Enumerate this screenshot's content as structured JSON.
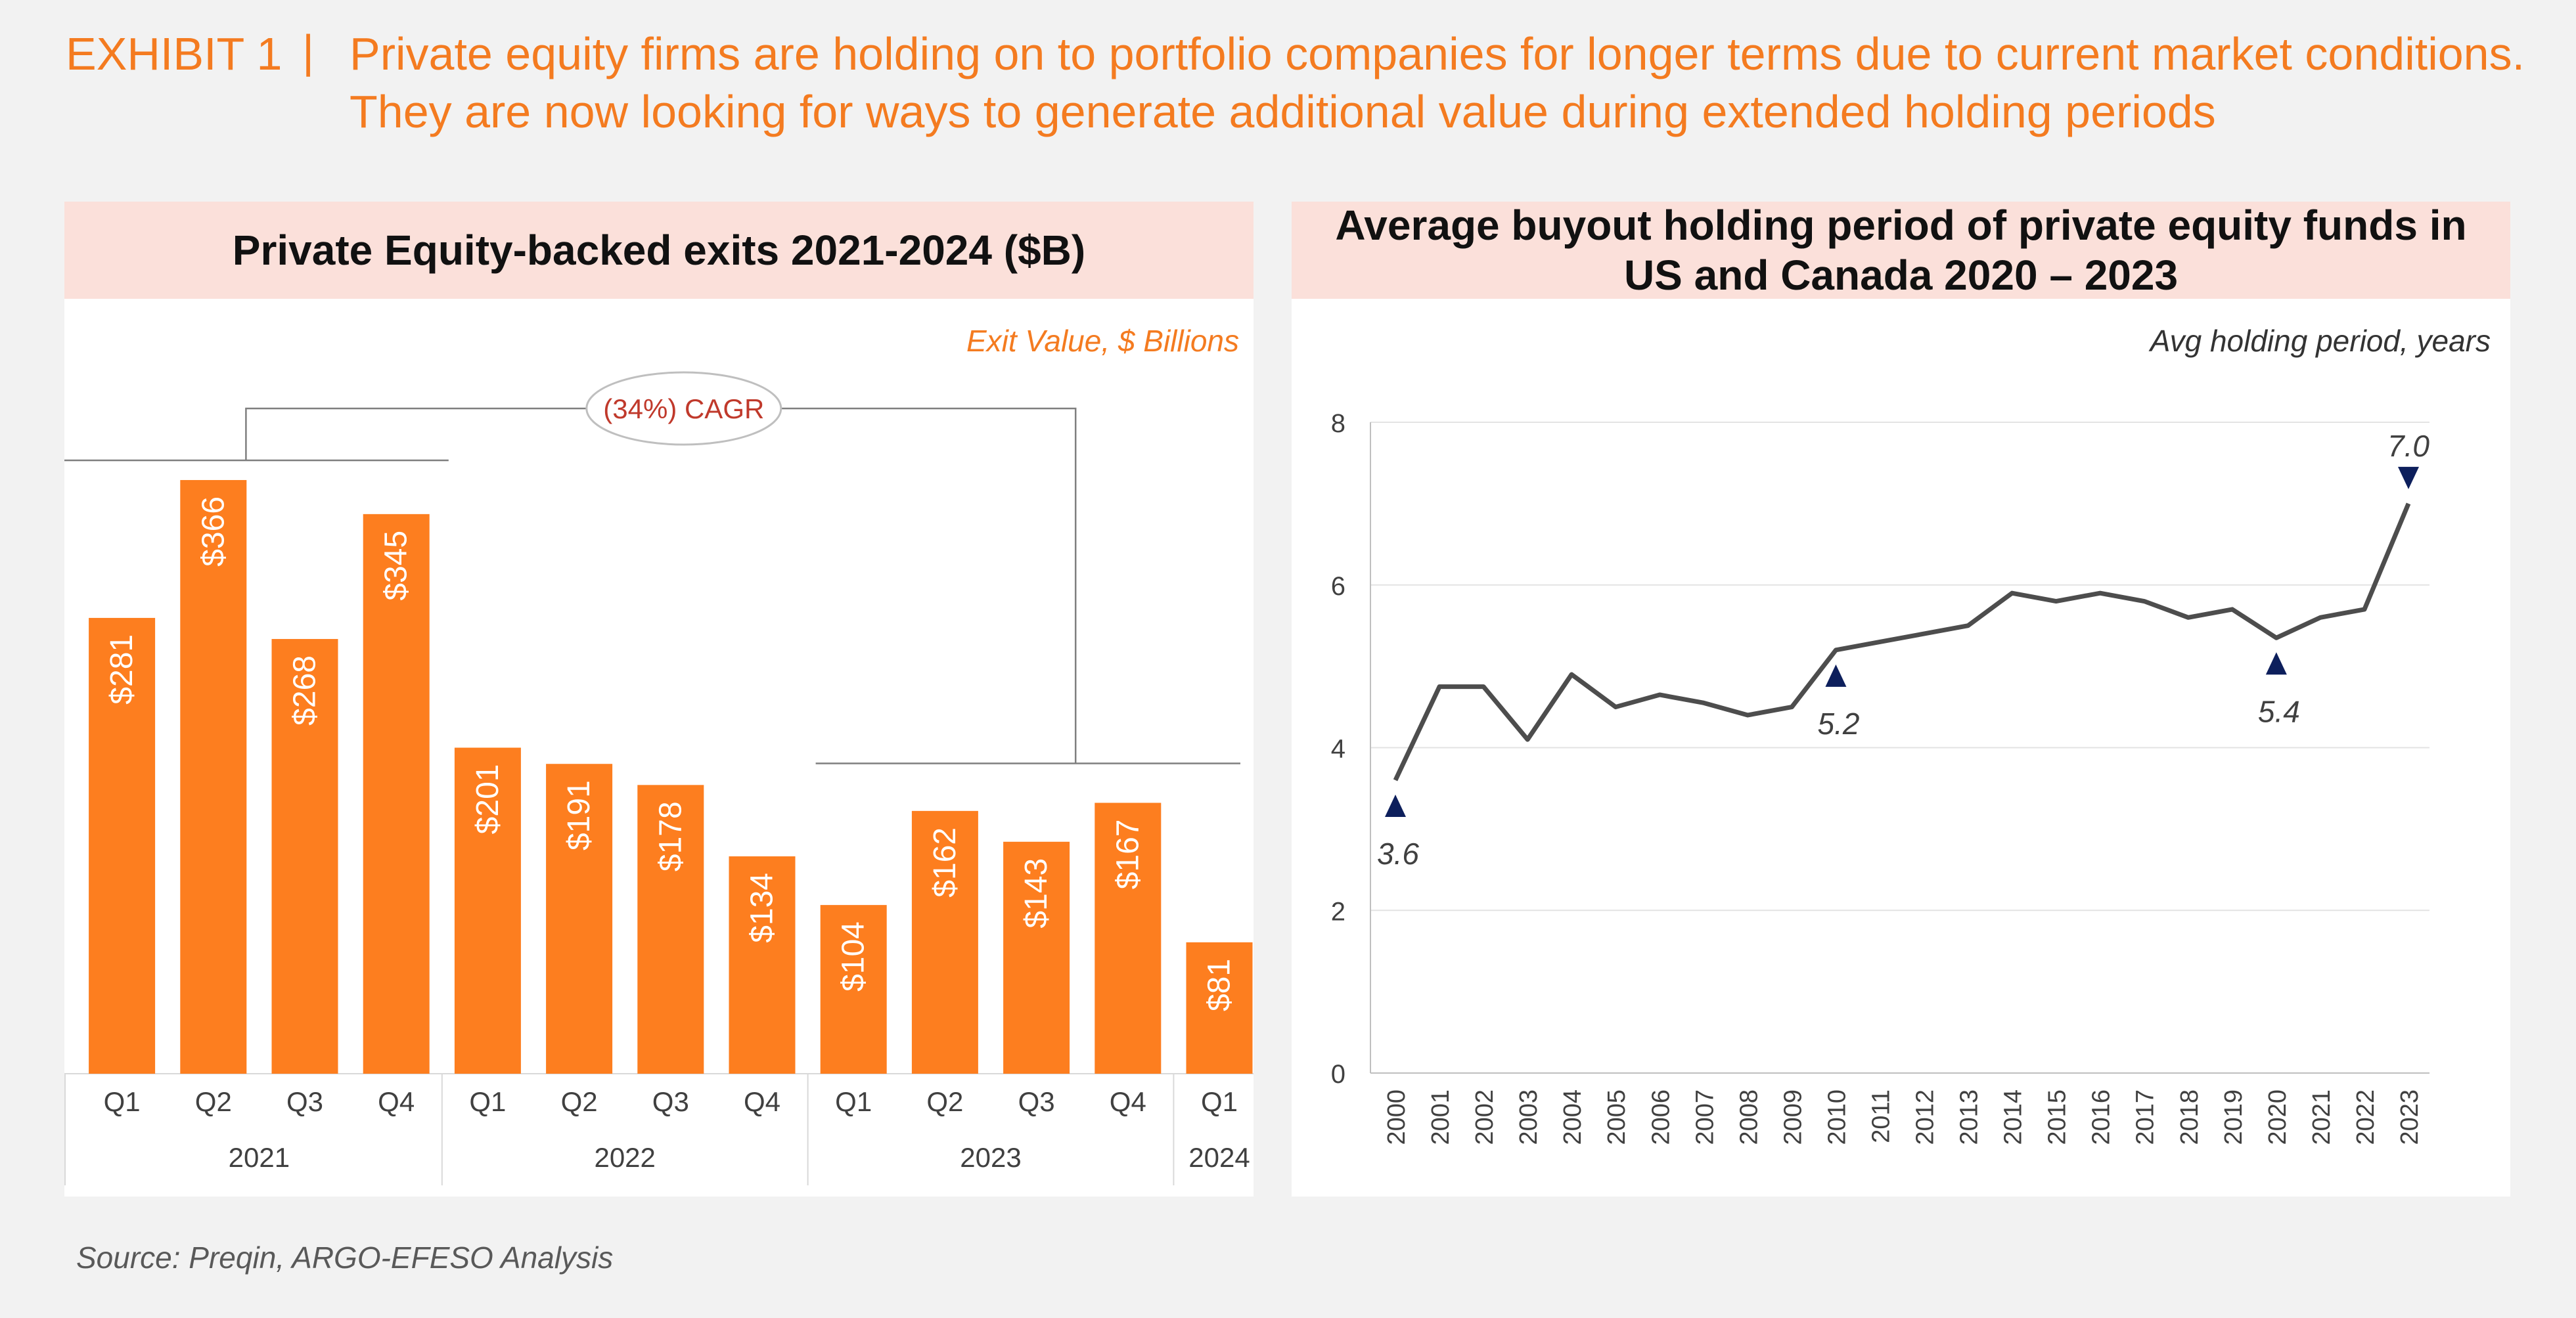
{
  "header": {
    "label": "EXHIBIT 1",
    "separator": "|",
    "title": "Private equity firms are holding on to portfolio companies for longer terms due to current market conditions. They are now looking for ways to generate additional value during extended holding periods"
  },
  "source": "Source: Preqin, ARGO-EFESO Analysis",
  "colors": {
    "accent": "#f47b20",
    "bar": "#fd7e1f",
    "title_bg": "#fbe0da",
    "line": "#4d4d4d",
    "marker": "#0d1f5c",
    "background": "#f2f2f2"
  },
  "left_panel": {
    "title": "Private Equity-backed exits 2021-2024 ($B)",
    "unit_note": "Exit Value, $ Billions",
    "cagr_label": "(34%) CAGR"
  },
  "right_panel": {
    "title": "Average buyout holding period of private equity funds in US and Canada 2020 – 2023",
    "unit_note": "Avg holding period, years"
  },
  "chart_data": [
    {
      "type": "bar",
      "title": "Private Equity-backed exits 2021-2024 ($B)",
      "ylabel": "Exit Value, $ Billions",
      "categories": [
        "Q1",
        "Q2",
        "Q3",
        "Q4",
        "Q1",
        "Q2",
        "Q3",
        "Q4",
        "Q1",
        "Q2",
        "Q3",
        "Q4",
        "Q1"
      ],
      "groups": [
        {
          "label": "2021",
          "count": 4
        },
        {
          "label": "2022",
          "count": 4
        },
        {
          "label": "2023",
          "count": 4
        },
        {
          "label": "2024",
          "count": 1
        }
      ],
      "values": [
        281,
        366,
        268,
        345,
        201,
        191,
        178,
        134,
        104,
        162,
        143,
        167,
        81
      ],
      "labels": [
        "$281",
        "$366",
        "$268",
        "$345",
        "$201",
        "$191",
        "$178",
        "$134",
        "$104",
        "$162",
        "$143",
        "$167",
        "$81"
      ],
      "ylim": [
        0,
        400
      ],
      "annotation": "(34%) CAGR",
      "grid": false
    },
    {
      "type": "line",
      "title": "Average buyout holding period of private equity funds in US and Canada 2020 – 2023",
      "ylabel": "Avg holding period, years",
      "x": [
        "2000",
        "2001",
        "2002",
        "2003",
        "2004",
        "2005",
        "2006",
        "2007",
        "2008",
        "2009",
        "2010",
        "2011",
        "2012",
        "2013",
        "2014",
        "2015",
        "2016",
        "2017",
        "2018",
        "2019",
        "2020",
        "2021",
        "2022",
        "2023"
      ],
      "values": [
        3.6,
        4.75,
        4.75,
        4.1,
        4.9,
        4.5,
        4.65,
        4.55,
        4.4,
        4.5,
        5.2,
        5.3,
        5.4,
        5.5,
        5.9,
        5.8,
        5.9,
        5.8,
        5.6,
        5.7,
        5.35,
        5.6,
        5.7,
        7.0
      ],
      "yticks": [
        0,
        2,
        4,
        6,
        8
      ],
      "ylim": [
        0,
        8
      ],
      "grid": true,
      "callouts": [
        {
          "x": "2000",
          "label": "3.6",
          "marker": "up",
          "position": "below"
        },
        {
          "x": "2010",
          "label": "5.2",
          "marker": "up",
          "position": "below"
        },
        {
          "x": "2020",
          "label": "5.4",
          "marker": "up",
          "position": "below"
        },
        {
          "x": "2023",
          "label": "7.0",
          "marker": "down",
          "position": "above"
        }
      ]
    }
  ]
}
